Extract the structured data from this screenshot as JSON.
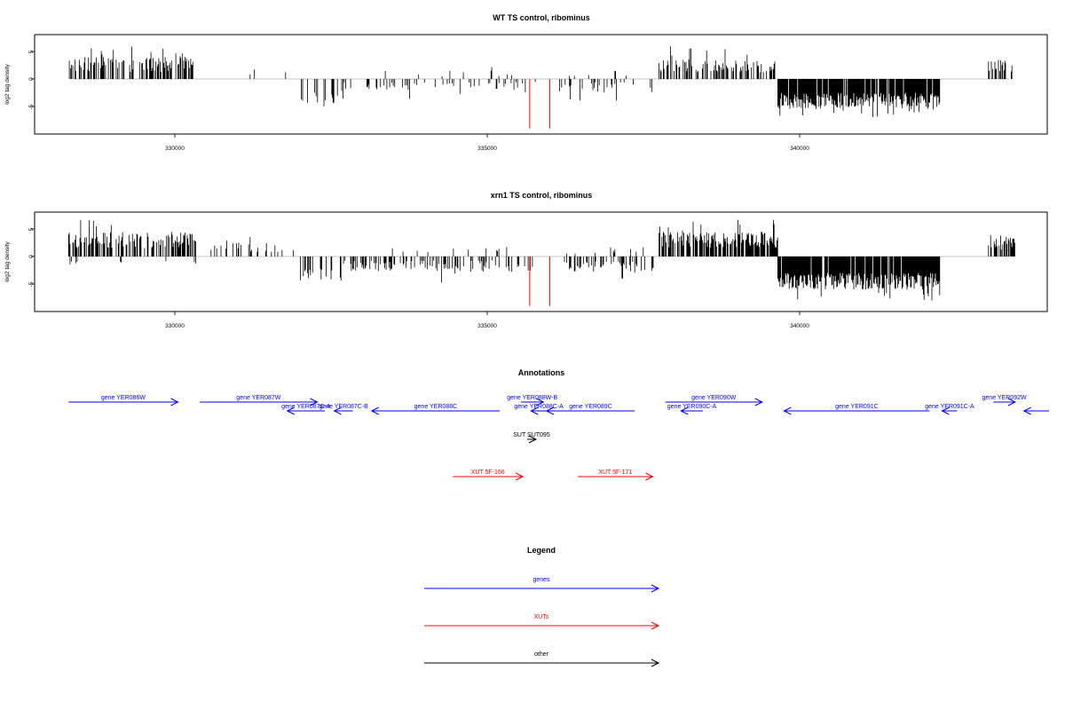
{
  "panels": [
    {
      "title": "WT TS control, ribominus",
      "ylabel": "log2 tag density",
      "yticks": [
        "5",
        "0",
        "-5"
      ],
      "xticks": [
        "330000",
        "335000",
        "340000"
      ]
    },
    {
      "title": "xrn1 TS control, ribominus",
      "ylabel": "log2 tag density",
      "yticks": [
        "5",
        "0",
        "-5"
      ],
      "xticks": [
        "330000",
        "335000",
        "340000"
      ]
    }
  ],
  "annotations": {
    "title": "Annotations",
    "features": [
      {
        "label": "gene YER086W",
        "type": "gene",
        "strand": "+",
        "start": 328300,
        "end": 330050,
        "row": 0
      },
      {
        "label": "gene YER087W",
        "type": "gene",
        "strand": "+",
        "start": 330400,
        "end": 332280,
        "row": 0
      },
      {
        "label": "gene YER087C-A",
        "type": "gene",
        "strand": "-",
        "start": 331800,
        "end": 332400,
        "row": 1
      },
      {
        "label": "gene YER087C-B",
        "type": "gene",
        "strand": "-",
        "start": 332550,
        "end": 332850,
        "row": 1
      },
      {
        "label": "gene YER088C",
        "type": "gene",
        "strand": "-",
        "start": 333150,
        "end": 335200,
        "row": 1
      },
      {
        "label": "gene YER088W-B",
        "type": "gene",
        "strand": "+",
        "start": 335540,
        "end": 335900,
        "row": 0
      },
      {
        "label": "gene YER088C-A",
        "type": "gene",
        "strand": "-",
        "start": 335700,
        "end": 335950,
        "row": 1
      },
      {
        "label": "gene YER089C",
        "type": "gene",
        "strand": "-",
        "start": 335950,
        "end": 337360,
        "row": 1
      },
      {
        "label": "gene YER090W",
        "type": "gene",
        "strand": "+",
        "start": 337850,
        "end": 339400,
        "row": 0
      },
      {
        "label": "gene YER090C-A",
        "type": "gene",
        "strand": "-",
        "start": 338100,
        "end": 338450,
        "row": 1
      },
      {
        "label": "gene YER091C",
        "type": "gene",
        "strand": "-",
        "start": 339750,
        "end": 342080,
        "row": 1
      },
      {
        "label": "gene YER091C-A",
        "type": "gene",
        "strand": "-",
        "start": 342280,
        "end": 342520,
        "row": 1
      },
      {
        "label": "gene YER092W",
        "type": "gene",
        "strand": "+",
        "start": 343100,
        "end": 343450,
        "row": 0
      },
      {
        "label": "",
        "type": "gene",
        "strand": "-",
        "start": 343590,
        "end": 344300,
        "row": 1
      },
      {
        "label": "SUT SUT095",
        "type": "other",
        "strand": "+",
        "start": 335640,
        "end": 335780,
        "row": 2
      },
      {
        "label": "XUT 5F-166",
        "type": "xut",
        "strand": "+",
        "start": 334450,
        "end": 335570,
        "row": 3
      },
      {
        "label": "XUT 5F-171",
        "type": "xut",
        "strand": "+",
        "start": 336450,
        "end": 337650,
        "row": 3
      }
    ]
  },
  "legend": {
    "title": "Legend",
    "items": [
      {
        "label": "genes",
        "color": "#0000ff"
      },
      {
        "label": "XUTs",
        "color": "#ff0000"
      },
      {
        "label": "other",
        "color": "#000000"
      }
    ]
  },
  "chart_data": [
    {
      "type": "bar",
      "title": "WT TS control, ribominus",
      "ylabel": "log2 tag density",
      "xlim": [
        327750,
        343800
      ],
      "ylim": [
        -9,
        8
      ],
      "x_ticks": [
        330000,
        335000,
        340000
      ],
      "y_ticks": [
        5,
        0,
        -5
      ],
      "red_markers_x": [
        335680,
        336000
      ],
      "red_markers_depth": -9,
      "regions": [
        {
          "start": 328300,
          "end": 330350,
          "sign": 1,
          "low": 1.3,
          "high": 4.0,
          "max": 6.0,
          "density": 0.45
        },
        {
          "start": 330500,
          "end": 331900,
          "sign": 1,
          "low": 0.6,
          "high": 2.0,
          "max": 3.0,
          "density": 0.07
        },
        {
          "start": 332000,
          "end": 332700,
          "sign": -1,
          "low": 2.0,
          "high": 4.5,
          "max": 5.8,
          "density": 0.22
        },
        {
          "start": 332700,
          "end": 335800,
          "sign": -1,
          "low": 0.5,
          "high": 2.0,
          "max": 4.5,
          "density": 0.16
        },
        {
          "start": 333300,
          "end": 335400,
          "sign": 1,
          "low": 0.4,
          "high": 1.8,
          "max": 3.3,
          "density": 0.05
        },
        {
          "start": 336100,
          "end": 337700,
          "sign": -1,
          "low": 0.6,
          "high": 2.4,
          "max": 4.0,
          "density": 0.16
        },
        {
          "start": 336100,
          "end": 337500,
          "sign": 1,
          "low": 0.4,
          "high": 1.6,
          "max": 2.6,
          "density": 0.05
        },
        {
          "start": 337750,
          "end": 339650,
          "sign": 1,
          "low": 1.2,
          "high": 3.6,
          "max": 6.0,
          "density": 0.5
        },
        {
          "start": 339650,
          "end": 342250,
          "sign": -1,
          "low": 2.5,
          "high": 5.5,
          "max": 7.0,
          "density": 0.9
        },
        {
          "start": 343000,
          "end": 343450,
          "sign": 1,
          "low": 1.0,
          "high": 3.5,
          "max": 5.3,
          "density": 0.4
        }
      ]
    },
    {
      "type": "bar",
      "title": "xrn1 TS control, ribominus",
      "ylabel": "log2 tag density",
      "xlim": [
        327750,
        343800
      ],
      "ylim": [
        -9,
        8
      ],
      "x_ticks": [
        330000,
        335000,
        340000
      ],
      "y_ticks": [
        5,
        0,
        -5
      ],
      "red_markers_x": [
        335680,
        336000
      ],
      "red_markers_depth": -9,
      "regions": [
        {
          "start": 328300,
          "end": 330350,
          "sign": 1,
          "low": 1.5,
          "high": 4.5,
          "max": 7.0,
          "density": 0.55
        },
        {
          "start": 328300,
          "end": 330350,
          "sign": -1,
          "low": 0.4,
          "high": 1.5,
          "max": 3.0,
          "density": 0.08
        },
        {
          "start": 330500,
          "end": 331900,
          "sign": 1,
          "low": 0.8,
          "high": 2.6,
          "max": 4.0,
          "density": 0.18
        },
        {
          "start": 332000,
          "end": 332700,
          "sign": -1,
          "low": 2.0,
          "high": 4.5,
          "max": 6.0,
          "density": 0.3
        },
        {
          "start": 332700,
          "end": 335800,
          "sign": -1,
          "low": 0.7,
          "high": 2.8,
          "max": 5.0,
          "density": 0.35
        },
        {
          "start": 333300,
          "end": 335400,
          "sign": 1,
          "low": 0.4,
          "high": 1.6,
          "max": 3.0,
          "density": 0.08
        },
        {
          "start": 336100,
          "end": 337700,
          "sign": -1,
          "low": 0.8,
          "high": 2.8,
          "max": 4.5,
          "density": 0.35
        },
        {
          "start": 336100,
          "end": 337500,
          "sign": 1,
          "low": 0.4,
          "high": 1.8,
          "max": 3.2,
          "density": 0.1
        },
        {
          "start": 337750,
          "end": 339650,
          "sign": 1,
          "low": 1.6,
          "high": 4.5,
          "max": 7.0,
          "density": 0.7
        },
        {
          "start": 339650,
          "end": 342250,
          "sign": -1,
          "low": 3.0,
          "high": 6.0,
          "max": 8.0,
          "density": 0.95
        },
        {
          "start": 343000,
          "end": 343450,
          "sign": 1,
          "low": 1.2,
          "high": 4.0,
          "max": 6.5,
          "density": 0.5
        }
      ]
    }
  ]
}
